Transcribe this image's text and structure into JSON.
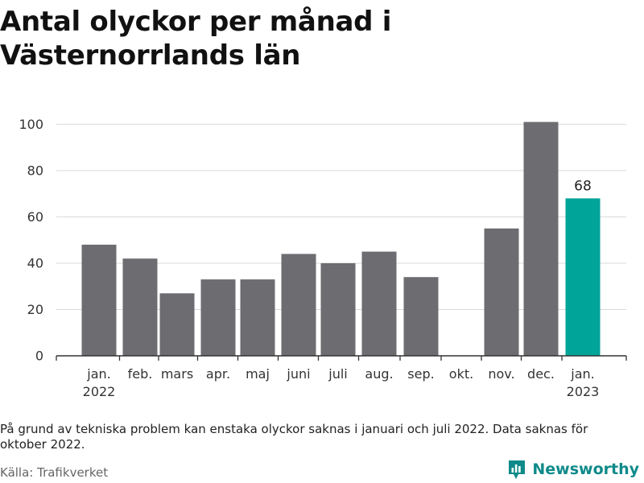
{
  "title": "Antal olyckor per månad i Västernorrlands län",
  "note": "På grund av tekniska problem kan enstaka olyckor saknas i januari och juli 2022. Data saknas för oktober 2022.",
  "source": "Källa: Trafikverket",
  "brand": "Newsworthy",
  "colors": {
    "bar": "#6d6c70",
    "highlight": "#00a499",
    "grid": "#d9d9d9",
    "axis": "#333333",
    "brand": "#0e8a8a"
  },
  "chart_data": {
    "type": "bar",
    "categories": [
      [
        "jan.",
        "2022"
      ],
      [
        "feb."
      ],
      [
        "mars"
      ],
      [
        "apr."
      ],
      [
        "maj"
      ],
      [
        "juni"
      ],
      [
        "juli"
      ],
      [
        "aug."
      ],
      [
        "sep."
      ],
      [
        "okt."
      ],
      [
        "nov."
      ],
      [
        "dec."
      ],
      [
        "jan.",
        "2023"
      ]
    ],
    "values": [
      48,
      42,
      27,
      33,
      33,
      44,
      40,
      45,
      34,
      null,
      55,
      101,
      68
    ],
    "highlight_index": 12,
    "data_labels": [
      null,
      null,
      null,
      null,
      null,
      null,
      null,
      null,
      null,
      null,
      null,
      null,
      "68"
    ],
    "yticks": [
      0,
      20,
      40,
      60,
      80,
      100
    ],
    "ylim": [
      0,
      105
    ],
    "grid": true,
    "legend": "none"
  }
}
